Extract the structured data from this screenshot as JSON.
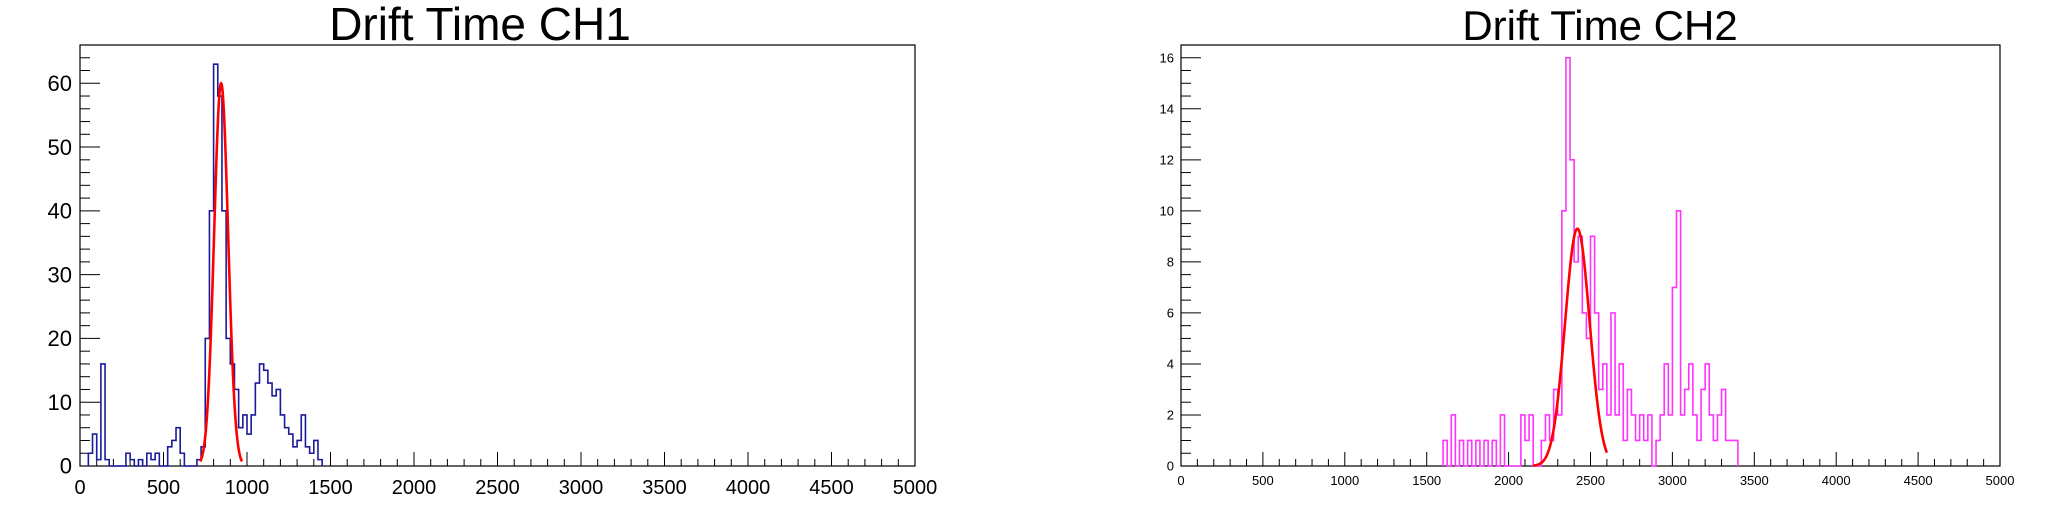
{
  "chart_data": [
    {
      "type": "line",
      "title": "Drift Time CH1",
      "xlim": [
        0,
        5000
      ],
      "ylim": [
        0,
        66
      ],
      "x_ticks": [
        "0",
        "500",
        "1000",
        "1500",
        "2000",
        "2500",
        "3000",
        "3500",
        "4000",
        "4500",
        "5000"
      ],
      "y_ticks": [
        "0",
        "10",
        "20",
        "30",
        "40",
        "50",
        "60"
      ],
      "bin_width": 25,
      "grid": false,
      "series": [
        {
          "kind": "histogram",
          "color": "#1a1a9a",
          "points": [
            [
              50,
              0
            ],
            [
              50,
              2
            ],
            [
              75,
              2
            ],
            [
              75,
              5
            ],
            [
              100,
              5
            ],
            [
              100,
              1
            ],
            [
              125,
              1
            ],
            [
              125,
              16
            ],
            [
              150,
              16
            ],
            [
              150,
              1
            ],
            [
              175,
              1
            ],
            [
              175,
              0
            ],
            [
              275,
              0
            ],
            [
              275,
              2
            ],
            [
              300,
              2
            ],
            [
              300,
              1
            ],
            [
              325,
              1
            ],
            [
              325,
              0
            ],
            [
              350,
              0
            ],
            [
              350,
              1
            ],
            [
              375,
              1
            ],
            [
              375,
              0
            ],
            [
              400,
              0
            ],
            [
              400,
              2
            ],
            [
              425,
              2
            ],
            [
              425,
              1
            ],
            [
              450,
              1
            ],
            [
              450,
              2
            ],
            [
              475,
              2
            ],
            [
              475,
              0
            ],
            [
              525,
              0
            ],
            [
              525,
              3
            ],
            [
              550,
              3
            ],
            [
              550,
              4
            ],
            [
              575,
              4
            ],
            [
              575,
              6
            ],
            [
              600,
              6
            ],
            [
              600,
              2
            ],
            [
              625,
              2
            ],
            [
              625,
              0
            ],
            [
              700,
              0
            ],
            [
              700,
              1
            ],
            [
              725,
              1
            ],
            [
              725,
              3
            ],
            [
              750,
              3
            ],
            [
              750,
              20
            ],
            [
              775,
              20
            ],
            [
              775,
              40
            ],
            [
              800,
              40
            ],
            [
              800,
              63
            ],
            [
              825,
              63
            ],
            [
              825,
              58
            ],
            [
              850,
              58
            ],
            [
              850,
              40
            ],
            [
              875,
              40
            ],
            [
              875,
              20
            ],
            [
              900,
              20
            ],
            [
              900,
              16
            ],
            [
              925,
              16
            ],
            [
              925,
              12
            ],
            [
              950,
              12
            ],
            [
              950,
              6
            ],
            [
              975,
              6
            ],
            [
              975,
              8
            ],
            [
              1000,
              8
            ],
            [
              1000,
              5
            ],
            [
              1025,
              5
            ],
            [
              1025,
              8
            ],
            [
              1050,
              8
            ],
            [
              1050,
              13
            ],
            [
              1075,
              13
            ],
            [
              1075,
              16
            ],
            [
              1100,
              16
            ],
            [
              1100,
              15
            ],
            [
              1125,
              15
            ],
            [
              1125,
              13
            ],
            [
              1150,
              13
            ],
            [
              1150,
              11
            ],
            [
              1175,
              11
            ],
            [
              1175,
              12
            ],
            [
              1200,
              12
            ],
            [
              1200,
              8
            ],
            [
              1225,
              8
            ],
            [
              1225,
              6
            ],
            [
              1250,
              6
            ],
            [
              1250,
              5
            ],
            [
              1275,
              5
            ],
            [
              1275,
              3
            ],
            [
              1300,
              3
            ],
            [
              1300,
              4
            ],
            [
              1325,
              4
            ],
            [
              1325,
              8
            ],
            [
              1350,
              8
            ],
            [
              1350,
              3
            ],
            [
              1375,
              3
            ],
            [
              1375,
              2
            ],
            [
              1400,
              2
            ],
            [
              1400,
              4
            ],
            [
              1425,
              4
            ],
            [
              1425,
              1
            ],
            [
              1450,
              1
            ],
            [
              1450,
              0
            ]
          ]
        },
        {
          "kind": "gaussian-fit",
          "color": "#ff0000",
          "amplitude": 60,
          "mean": 845,
          "sigma": 42,
          "x_range": [
            720,
            970
          ]
        }
      ]
    },
    {
      "type": "line",
      "title": "Drift Time CH2",
      "xlim": [
        0,
        5000
      ],
      "ylim": [
        0,
        16.5
      ],
      "x_ticks": [
        "0",
        "500",
        "1000",
        "1500",
        "2000",
        "2500",
        "3000",
        "3500",
        "4000",
        "4500",
        "5000"
      ],
      "y_ticks": [
        "0",
        "2",
        "4",
        "6",
        "8",
        "10",
        "12",
        "14",
        "16"
      ],
      "bin_width": 25,
      "grid": false,
      "series": [
        {
          "kind": "histogram",
          "color": "#ff33ff",
          "points": [
            [
              1600,
              0
            ],
            [
              1600,
              1
            ],
            [
              1625,
              1
            ],
            [
              1625,
              0
            ],
            [
              1650,
              0
            ],
            [
              1650,
              2
            ],
            [
              1675,
              2
            ],
            [
              1675,
              0
            ],
            [
              1700,
              0
            ],
            [
              1700,
              1
            ],
            [
              1725,
              1
            ],
            [
              1725,
              0
            ],
            [
              1750,
              0
            ],
            [
              1750,
              1
            ],
            [
              1775,
              1
            ],
            [
              1775,
              0
            ],
            [
              1800,
              0
            ],
            [
              1800,
              1
            ],
            [
              1825,
              1
            ],
            [
              1825,
              0
            ],
            [
              1850,
              0
            ],
            [
              1850,
              1
            ],
            [
              1875,
              1
            ],
            [
              1875,
              0
            ],
            [
              1900,
              0
            ],
            [
              1900,
              1
            ],
            [
              1925,
              1
            ],
            [
              1925,
              0
            ],
            [
              1950,
              0
            ],
            [
              1950,
              2
            ],
            [
              1975,
              2
            ],
            [
              1975,
              0
            ],
            [
              2075,
              0
            ],
            [
              2075,
              2
            ],
            [
              2100,
              2
            ],
            [
              2100,
              1
            ],
            [
              2125,
              1
            ],
            [
              2125,
              2
            ],
            [
              2150,
              2
            ],
            [
              2150,
              0
            ],
            [
              2200,
              0
            ],
            [
              2200,
              1
            ],
            [
              2225,
              1
            ],
            [
              2225,
              2
            ],
            [
              2250,
              2
            ],
            [
              2250,
              1
            ],
            [
              2275,
              1
            ],
            [
              2275,
              3
            ],
            [
              2300,
              3
            ],
            [
              2300,
              2
            ],
            [
              2325,
              2
            ],
            [
              2325,
              10
            ],
            [
              2350,
              10
            ],
            [
              2350,
              16
            ],
            [
              2375,
              16
            ],
            [
              2375,
              12
            ],
            [
              2400,
              12
            ],
            [
              2400,
              8
            ],
            [
              2425,
              8
            ],
            [
              2425,
              9
            ],
            [
              2450,
              9
            ],
            [
              2450,
              6
            ],
            [
              2475,
              6
            ],
            [
              2475,
              5
            ],
            [
              2500,
              5
            ],
            [
              2500,
              9
            ],
            [
              2525,
              9
            ],
            [
              2525,
              6
            ],
            [
              2550,
              6
            ],
            [
              2550,
              3
            ],
            [
              2575,
              3
            ],
            [
              2575,
              4
            ],
            [
              2600,
              4
            ],
            [
              2600,
              2
            ],
            [
              2625,
              2
            ],
            [
              2625,
              6
            ],
            [
              2650,
              6
            ],
            [
              2650,
              2
            ],
            [
              2675,
              2
            ],
            [
              2675,
              4
            ],
            [
              2700,
              4
            ],
            [
              2700,
              1
            ],
            [
              2725,
              1
            ],
            [
              2725,
              3
            ],
            [
              2750,
              3
            ],
            [
              2750,
              2
            ],
            [
              2775,
              2
            ],
            [
              2775,
              1
            ],
            [
              2800,
              1
            ],
            [
              2800,
              2
            ],
            [
              2825,
              2
            ],
            [
              2825,
              1
            ],
            [
              2850,
              1
            ],
            [
              2850,
              2
            ],
            [
              2875,
              2
            ],
            [
              2875,
              0
            ],
            [
              2900,
              0
            ],
            [
              2900,
              1
            ],
            [
              2925,
              1
            ],
            [
              2925,
              2
            ],
            [
              2950,
              2
            ],
            [
              2950,
              4
            ],
            [
              2975,
              4
            ],
            [
              2975,
              2
            ],
            [
              3000,
              2
            ],
            [
              3000,
              7
            ],
            [
              3025,
              7
            ],
            [
              3025,
              10
            ],
            [
              3050,
              10
            ],
            [
              3050,
              2
            ],
            [
              3075,
              2
            ],
            [
              3075,
              3
            ],
            [
              3100,
              3
            ],
            [
              3100,
              4
            ],
            [
              3125,
              4
            ],
            [
              3125,
              2
            ],
            [
              3150,
              2
            ],
            [
              3150,
              1
            ],
            [
              3175,
              1
            ],
            [
              3175,
              3
            ],
            [
              3200,
              3
            ],
            [
              3200,
              4
            ],
            [
              3225,
              4
            ],
            [
              3225,
              2
            ],
            [
              3250,
              2
            ],
            [
              3250,
              1
            ],
            [
              3275,
              1
            ],
            [
              3275,
              2
            ],
            [
              3300,
              2
            ],
            [
              3300,
              3
            ],
            [
              3325,
              3
            ],
            [
              3325,
              1
            ],
            [
              3400,
              1
            ],
            [
              3400,
              0
            ]
          ]
        },
        {
          "kind": "gaussian-fit",
          "color": "#ff0000",
          "amplitude": 9.3,
          "mean": 2420,
          "sigma": 75,
          "x_range": [
            2150,
            2600
          ]
        }
      ]
    }
  ]
}
